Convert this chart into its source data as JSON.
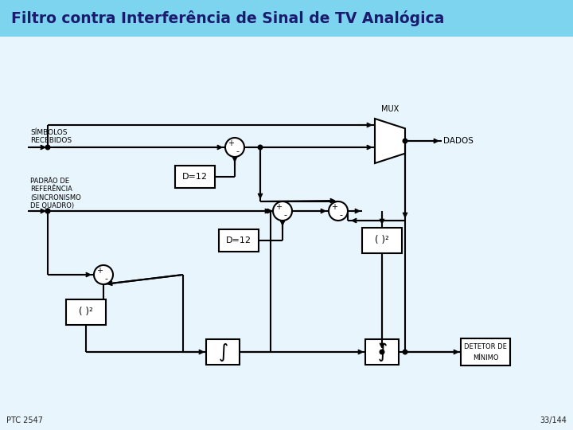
{
  "title": "Filtro contra Interferência de Sinal de TV Analógica",
  "title_color": "#1a1a6e",
  "footer_left": "PTC 2547",
  "footer_right": "33/144",
  "label_simbolos": "SÍMBOLOS\nRECEBIDOS",
  "label_dados": "DADOS",
  "label_mux": "MUX",
  "label_padrao": "PADRÃO DE\nREFERÊNCIA\n(SINCRONISMO\nDE QUADRO)",
  "label_d12": "D=12",
  "label_sq": "( )²",
  "label_detetor": "DETETOR DE\nMÍNIMO",
  "bg_color": "#CEEAF7",
  "title_bar_color": "#7DD4EF",
  "body_color": "#E8F5FC"
}
